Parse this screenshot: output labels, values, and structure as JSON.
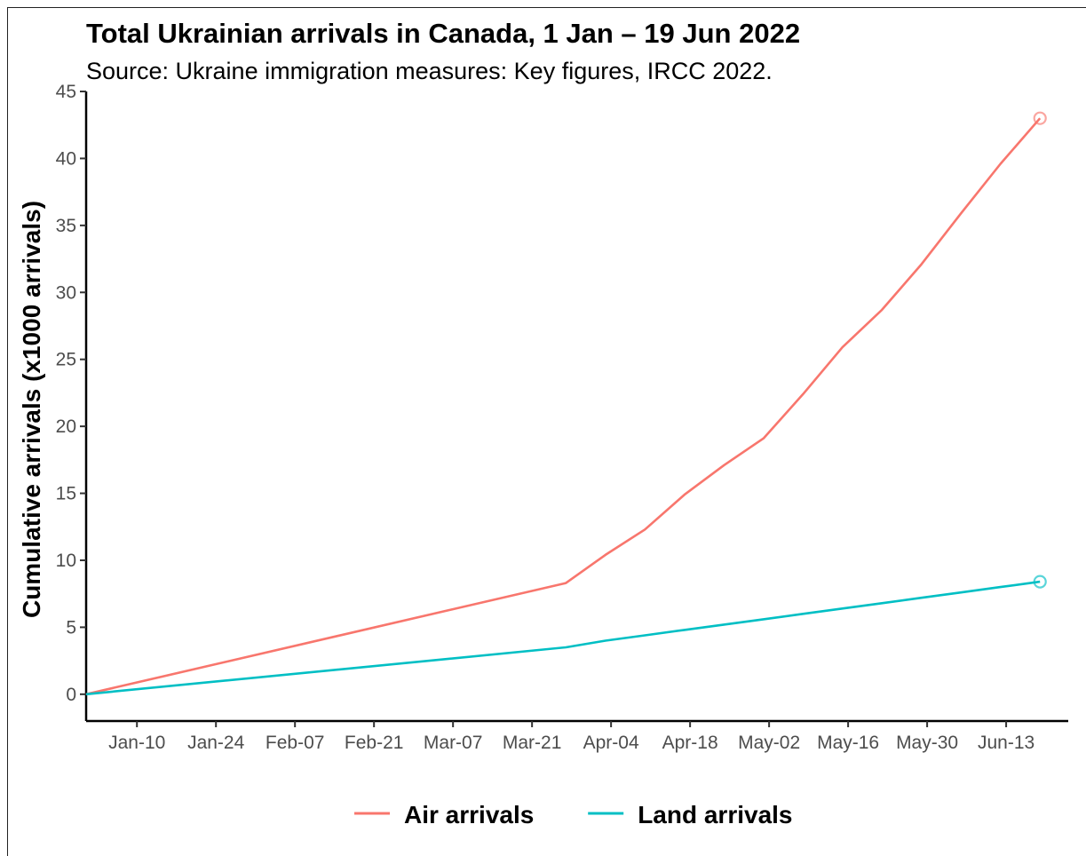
{
  "chart_data": {
    "type": "line",
    "title": "Total Ukrainian arrivals in Canada, 1 Jan – 19 Jun 2022",
    "subtitle": "Source: Ukraine immigration measures: Key figures, IRCC 2022.",
    "xlabel": "",
    "ylabel": "Cumulative arrivals (x1000 arrivals)",
    "x_range": [
      "2022-01-01",
      "2022-06-24"
    ],
    "ylim": [
      -2,
      45
    ],
    "y_ticks": [
      0,
      5,
      10,
      15,
      20,
      25,
      30,
      35,
      40,
      45
    ],
    "x_ticks": [
      {
        "date": "2022-01-10",
        "label": "Jan-10"
      },
      {
        "date": "2022-01-24",
        "label": "Jan-24"
      },
      {
        "date": "2022-02-07",
        "label": "Feb-07"
      },
      {
        "date": "2022-02-21",
        "label": "Feb-21"
      },
      {
        "date": "2022-03-07",
        "label": "Mar-07"
      },
      {
        "date": "2022-03-21",
        "label": "Mar-21"
      },
      {
        "date": "2022-04-04",
        "label": "Apr-04"
      },
      {
        "date": "2022-04-18",
        "label": "Apr-18"
      },
      {
        "date": "2022-05-02",
        "label": "May-02"
      },
      {
        "date": "2022-05-16",
        "label": "May-16"
      },
      {
        "date": "2022-05-30",
        "label": "May-30"
      },
      {
        "date": "2022-06-13",
        "label": "Jun-13"
      }
    ],
    "grid": false,
    "legend_position": "bottom",
    "series": [
      {
        "name": "Air arrivals",
        "color": "#f8766d",
        "end_marker": "open-circle",
        "points": [
          {
            "x": "2022-01-01",
            "y": 0
          },
          {
            "x": "2022-03-27",
            "y": 8.3
          },
          {
            "x": "2022-04-03",
            "y": 10.4
          },
          {
            "x": "2022-04-10",
            "y": 12.3
          },
          {
            "x": "2022-04-17",
            "y": 14.9
          },
          {
            "x": "2022-04-24",
            "y": 17.1
          },
          {
            "x": "2022-05-01",
            "y": 19.1
          },
          {
            "x": "2022-05-08",
            "y": 22.4
          },
          {
            "x": "2022-05-15",
            "y": 25.9
          },
          {
            "x": "2022-05-22",
            "y": 28.7
          },
          {
            "x": "2022-05-29",
            "y": 32.1
          },
          {
            "x": "2022-06-05",
            "y": 35.9
          },
          {
            "x": "2022-06-12",
            "y": 39.6
          },
          {
            "x": "2022-06-19",
            "y": 43.0
          }
        ]
      },
      {
        "name": "Land arrivals",
        "color": "#00bfc4",
        "end_marker": "open-circle",
        "points": [
          {
            "x": "2022-01-01",
            "y": 0
          },
          {
            "x": "2022-03-27",
            "y": 3.5
          },
          {
            "x": "2022-04-03",
            "y": 4.0
          },
          {
            "x": "2022-04-10",
            "y": 4.4
          },
          {
            "x": "2022-04-17",
            "y": 4.8
          },
          {
            "x": "2022-04-24",
            "y": 5.2
          },
          {
            "x": "2022-05-01",
            "y": 5.6
          },
          {
            "x": "2022-05-08",
            "y": 6.0
          },
          {
            "x": "2022-05-15",
            "y": 6.4
          },
          {
            "x": "2022-05-22",
            "y": 6.8
          },
          {
            "x": "2022-05-29",
            "y": 7.2
          },
          {
            "x": "2022-06-05",
            "y": 7.6
          },
          {
            "x": "2022-06-12",
            "y": 8.0
          },
          {
            "x": "2022-06-19",
            "y": 8.4
          }
        ]
      }
    ]
  }
}
